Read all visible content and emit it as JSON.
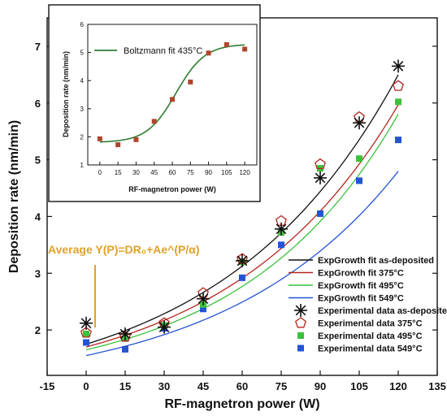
{
  "colors": {
    "as_deposited": "#111111",
    "c375": "#b4261f",
    "c495": "#3cc13c",
    "c549": "#2453d6",
    "boltzmann": "#2e7d32",
    "inset_points": "#b0452b",
    "annotation": "#e0a12a"
  },
  "chart_data": [
    {
      "type": "scatter",
      "xlabel": "RF-magnetron power (W)",
      "ylabel": "Deposition rate (nm/min)",
      "xlim": [
        -15,
        135
      ],
      "ylim": [
        1.2,
        7.5
      ],
      "x_ticks": [
        -15,
        0,
        15,
        30,
        45,
        60,
        75,
        90,
        105,
        120,
        135
      ],
      "y_ticks": [
        2,
        3,
        4,
        5,
        6,
        7
      ],
      "grid": false,
      "legend_position": "bottom-right",
      "annotation": "Average Y(P)=DR₀+Ae^(P/α)",
      "x": [
        0,
        15,
        30,
        45,
        60,
        75,
        90,
        105,
        120
      ],
      "series": [
        {
          "name": "Experimental data as-deposited",
          "marker": "asterisk",
          "color": "#111111",
          "values": [
            2.12,
            1.93,
            2.05,
            2.55,
            3.22,
            3.78,
            4.68,
            5.65,
            6.65
          ]
        },
        {
          "name": "Experimental data 375°C",
          "marker": "pentagon-open",
          "color": "#b4261f",
          "values": [
            1.95,
            1.88,
            2.12,
            2.65,
            3.25,
            3.92,
            4.92,
            5.75,
            6.3
          ]
        },
        {
          "name": "Experimental data 495°C",
          "marker": "square",
          "color": "#3cc13c",
          "values": [
            1.93,
            1.85,
            2.08,
            2.45,
            3.2,
            3.72,
            4.85,
            5.02,
            6.02
          ]
        },
        {
          "name": "Experimental data 549°C",
          "marker": "square",
          "color": "#2453d6",
          "values": [
            1.78,
            1.66,
            2.03,
            2.37,
            2.92,
            3.5,
            4.05,
            4.63,
            5.35
          ]
        }
      ],
      "fits": [
        {
          "name": "ExpGrowth fit as-deposited",
          "color": "#111111",
          "dr0": 0.8,
          "a": 0.95,
          "alpha": 67
        },
        {
          "name": "ExpGrowth fit 375°C",
          "color": "#b4261f",
          "dr0": 0.9,
          "a": 0.8,
          "alpha": 65
        },
        {
          "name": "ExpGrowth fit 495°C",
          "color": "#3cc13c",
          "dr0": 1.0,
          "a": 0.65,
          "alpha": 60
        },
        {
          "name": "ExpGrowth fit 549°C",
          "color": "#2453d6",
          "dr0": 0.9,
          "a": 0.65,
          "alpha": 67
        }
      ]
    },
    {
      "type": "scatter",
      "xlabel": "RF-magnetron power (W)",
      "ylabel": "Deposition rate (nm/min)",
      "xlim": [
        -10,
        130
      ],
      "ylim": [
        1,
        6
      ],
      "x_ticks": [
        0,
        15,
        30,
        45,
        60,
        75,
        90,
        105,
        120
      ],
      "y_ticks": [
        1,
        2,
        3,
        4,
        5,
        6
      ],
      "legend_position": "top-left",
      "x": [
        0,
        15,
        30,
        45,
        60,
        75,
        90,
        105,
        120
      ],
      "values": [
        1.93,
        1.72,
        1.9,
        2.55,
        3.33,
        3.95,
        4.98,
        5.28,
        5.12
      ],
      "fit": {
        "name": "Boltzmann fit 435°C",
        "color": "#2e7d32",
        "a1": 1.8,
        "a2": 5.3,
        "x0": 63,
        "dx": 12
      }
    }
  ]
}
